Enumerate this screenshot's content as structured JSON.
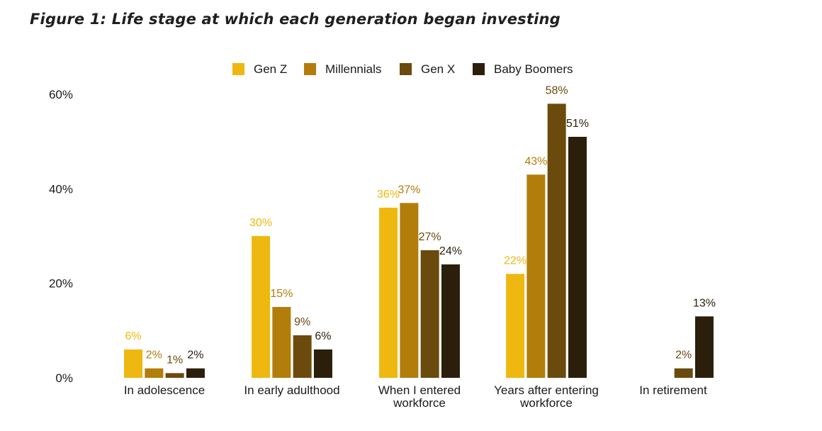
{
  "figure": {
    "title": "Figure 1: Life stage at which each generation began investing"
  },
  "chart_data": {
    "type": "bar",
    "categories": [
      [
        "In adolescence"
      ],
      [
        "In early adulthood"
      ],
      [
        "When I entered",
        "workforce"
      ],
      [
        "Years after entering",
        "workforce"
      ],
      [
        "In retirement"
      ]
    ],
    "series": [
      {
        "name": "Gen Z",
        "color": "#eeb811",
        "values": [
          6,
          30,
          36,
          22,
          null
        ],
        "labels": [
          "6%",
          "30%",
          "36%",
          "22%",
          null
        ]
      },
      {
        "name": "Millennials",
        "color": "#b27d0a",
        "values": [
          2,
          15,
          37,
          43,
          null
        ],
        "labels": [
          "2%",
          "15%",
          "37%",
          "43%",
          null
        ]
      },
      {
        "name": "Gen X",
        "color": "#6b4a0d",
        "values": [
          1,
          9,
          27,
          58,
          2
        ],
        "labels": [
          "1%",
          "9%",
          "27%",
          "58%",
          "2%"
        ]
      },
      {
        "name": "Baby Boomers",
        "color": "#2b1f0c",
        "values": [
          2,
          6,
          24,
          51,
          13
        ],
        "labels": [
          "2%",
          "6%",
          "24%",
          "51%",
          "13%"
        ]
      }
    ],
    "yticks": [
      "0%",
      "20%",
      "40%",
      "60%"
    ],
    "ytick_values": [
      0,
      20,
      40,
      60
    ],
    "ylim": [
      0,
      60
    ],
    "grid": false,
    "legend_position": "top-center"
  }
}
